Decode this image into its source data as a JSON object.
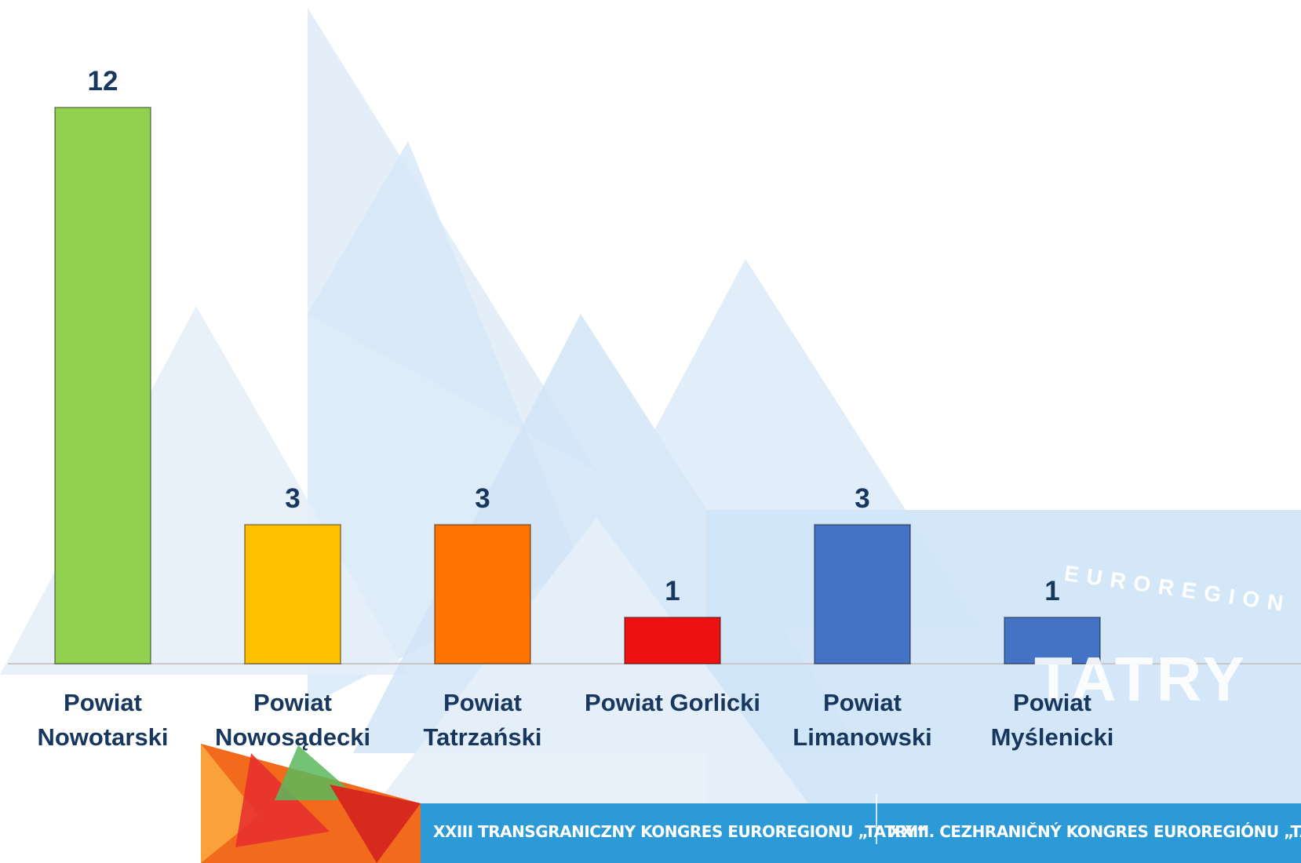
{
  "chart_data": {
    "type": "bar",
    "categories": [
      "Powiat Nowotarski",
      "Powiat Nowosądecki",
      "Powiat Tatrzański",
      "Powiat Gorlicki",
      "Powiat Limanowski",
      "Powiat Myślenicki"
    ],
    "values": [
      12,
      3,
      3,
      1,
      3,
      1
    ],
    "colors": [
      "#92d050",
      "#ffc000",
      "#ff7300",
      "#ee1111",
      "#4472c4",
      "#4472c4"
    ],
    "ylim": [
      0,
      12
    ]
  },
  "banner": [
    "XXIII TRANSGRANICZNY KONGRES EUROREGIONU „TATRY“",
    "XXIII. CEZHRANIČNÝ KONGRES EUROREGIÓNU „TATRY“"
  ],
  "logo": [
    "EUROREGION",
    "TATRY"
  ]
}
